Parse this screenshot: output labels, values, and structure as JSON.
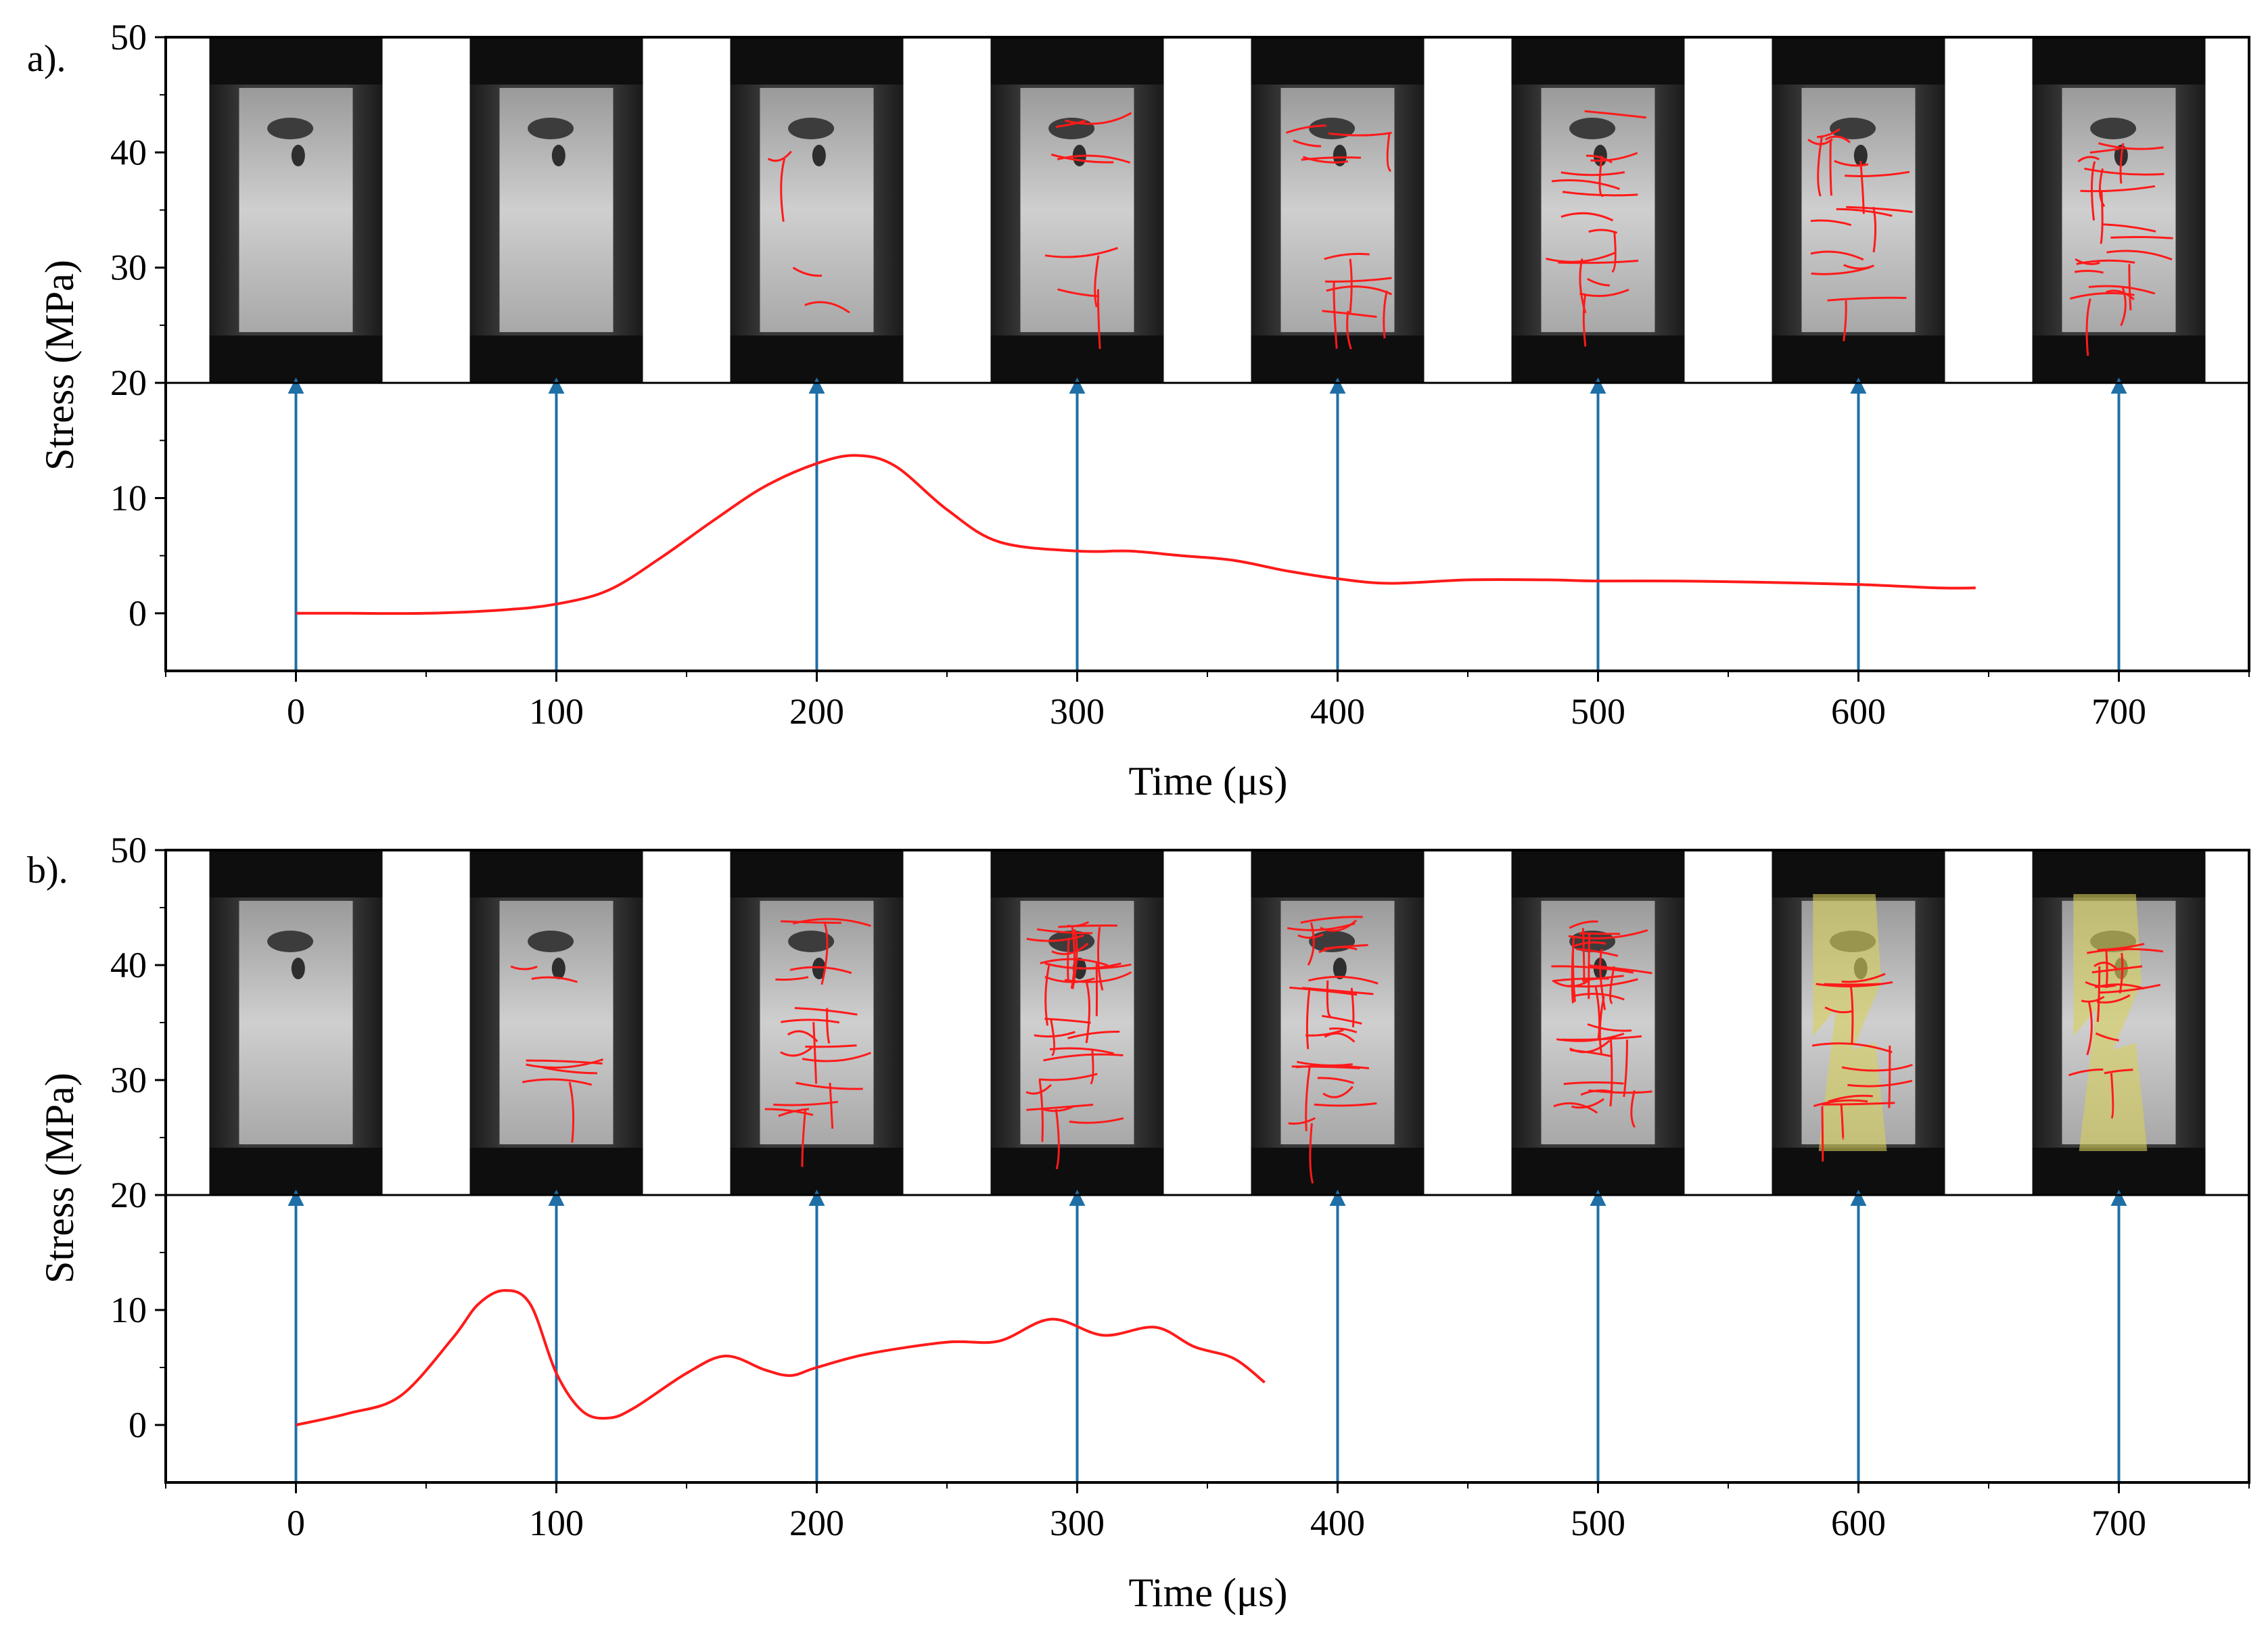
{
  "colors": {
    "curve": "#ff1a1a",
    "arrow": "#1f6fa6",
    "axis": "#000000",
    "highlight": "#d8d05a"
  },
  "chart_data": [
    {
      "type": "line",
      "panel_label": "a).",
      "xlabel": "Time (μs)",
      "ylabel": "Stress (MPa)",
      "xlim": [
        -50,
        750
      ],
      "ylim": [
        -5,
        50
      ],
      "x_ticks": [
        0,
        100,
        200,
        300,
        400,
        500,
        600,
        700
      ],
      "y_ticks": [
        0,
        10,
        20,
        30,
        40,
        50
      ],
      "grid": false,
      "image_strip": {
        "y_range": [
          20,
          50
        ],
        "frames_at_time": [
          0,
          100,
          200,
          300,
          400,
          500,
          600,
          700
        ],
        "description_marks": "high-speed camera frames of specimen with red crack traces"
      },
      "arrows_at_time": [
        0,
        100,
        200,
        300,
        400,
        500,
        600,
        700
      ],
      "series": [
        {
          "name": "stress",
          "x": [
            0,
            20,
            50,
            80,
            100,
            120,
            140,
            160,
            180,
            200,
            215,
            230,
            250,
            270,
            300,
            320,
            340,
            360,
            380,
            400,
            420,
            450,
            480,
            500,
            530,
            560,
            600,
            630,
            645
          ],
          "y": [
            0,
            0,
            0,
            0.3,
            0.8,
            2.0,
            4.8,
            8.0,
            11.0,
            13.0,
            13.7,
            12.8,
            9.0,
            6.2,
            5.4,
            5.4,
            5.0,
            4.6,
            3.7,
            3.0,
            2.6,
            2.9,
            2.9,
            2.8,
            2.8,
            2.7,
            2.5,
            2.2,
            2.2
          ]
        }
      ]
    },
    {
      "type": "line",
      "panel_label": "b).",
      "xlabel": "Time (μs)",
      "ylabel": "Stress (MPa)",
      "xlim": [
        -50,
        750
      ],
      "ylim": [
        -5,
        50
      ],
      "x_ticks": [
        0,
        100,
        200,
        300,
        400,
        500,
        600,
        700
      ],
      "y_ticks": [
        0,
        10,
        20,
        30,
        40,
        50
      ],
      "grid": false,
      "image_strip": {
        "y_range": [
          20,
          50
        ],
        "frames_at_time": [
          0,
          100,
          200,
          300,
          400,
          500,
          600,
          700
        ],
        "highlighted_frames_at_time": [
          600,
          700
        ],
        "description_marks": "high-speed camera frames of specimen with red crack traces; yellow shaded failure band in last two frames"
      },
      "arrows_at_time": [
        0,
        100,
        200,
        300,
        400,
        500,
        600,
        700
      ],
      "series": [
        {
          "name": "stress",
          "x": [
            0,
            20,
            40,
            60,
            70,
            80,
            90,
            100,
            110,
            120,
            130,
            150,
            165,
            180,
            190,
            200,
            220,
            250,
            270,
            290,
            310,
            330,
            345,
            360,
            372
          ],
          "y": [
            0,
            1.0,
            2.5,
            7.5,
            10.5,
            11.7,
            10.5,
            4.5,
            1.2,
            0.6,
            1.5,
            4.5,
            6.0,
            4.8,
            4.3,
            5.0,
            6.2,
            7.2,
            7.3,
            9.2,
            7.8,
            8.5,
            6.8,
            5.8,
            3.7
          ]
        }
      ]
    }
  ]
}
